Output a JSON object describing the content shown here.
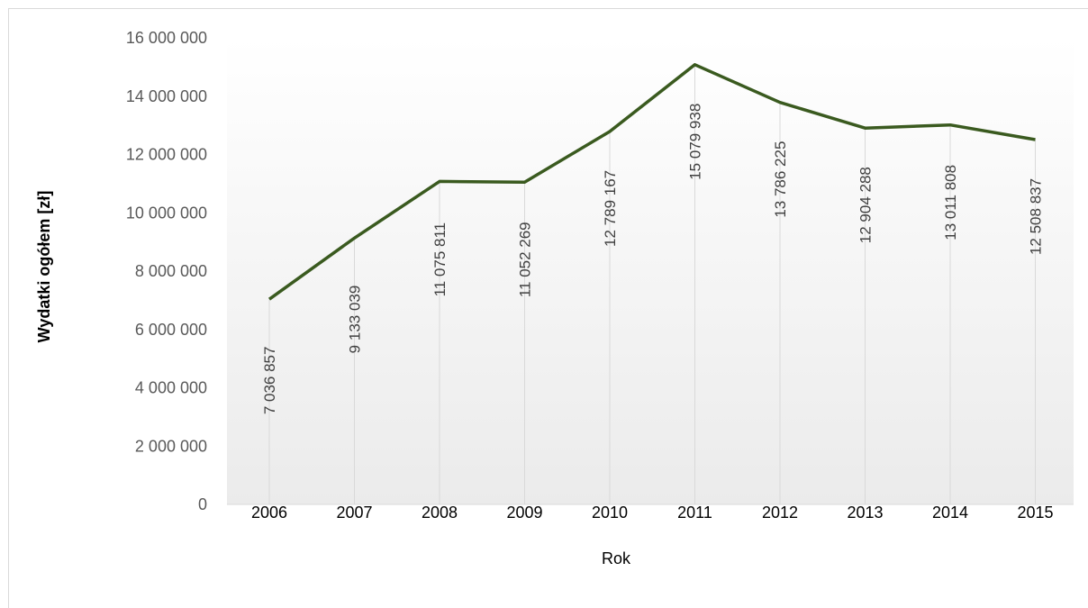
{
  "chart_data": {
    "type": "line",
    "title": "",
    "xlabel": "Rok",
    "ylabel": "Wydatki ogółem [zł]",
    "categories": [
      "2006",
      "2007",
      "2008",
      "2009",
      "2010",
      "2011",
      "2012",
      "2013",
      "2014",
      "2015"
    ],
    "series": [
      {
        "values": [
          7036857,
          9133039,
          11075811,
          11052269,
          12789167,
          15079938,
          13786225,
          12904288,
          13011808,
          12508837
        ],
        "labels": [
          "7 036 857",
          "9 133 039",
          "11 075 811",
          "11 052 269",
          "12 789 167",
          "15 079 938",
          "13 786 225",
          "12 904 288",
          "13 011 808",
          "12 508 837"
        ]
      }
    ],
    "ylim": [
      0,
      16000000
    ],
    "y_ticks": [
      "0",
      "2 000 000",
      "4 000 000",
      "6 000 000",
      "8 000 000",
      "10 000 000",
      "12 000 000",
      "14 000 000",
      "16 000 000"
    ],
    "y_tick_values": [
      0,
      2000000,
      4000000,
      6000000,
      8000000,
      10000000,
      12000000,
      14000000,
      16000000
    ],
    "grid": false,
    "drop_lines": true,
    "legend": "none",
    "colors": {
      "line": "#3a5a1f",
      "drop_line": "#d9d9d9",
      "axis": "#d9d9d9",
      "plot_bg_top": "#ffffff",
      "plot_bg_bottom": "#ebebeb"
    }
  }
}
